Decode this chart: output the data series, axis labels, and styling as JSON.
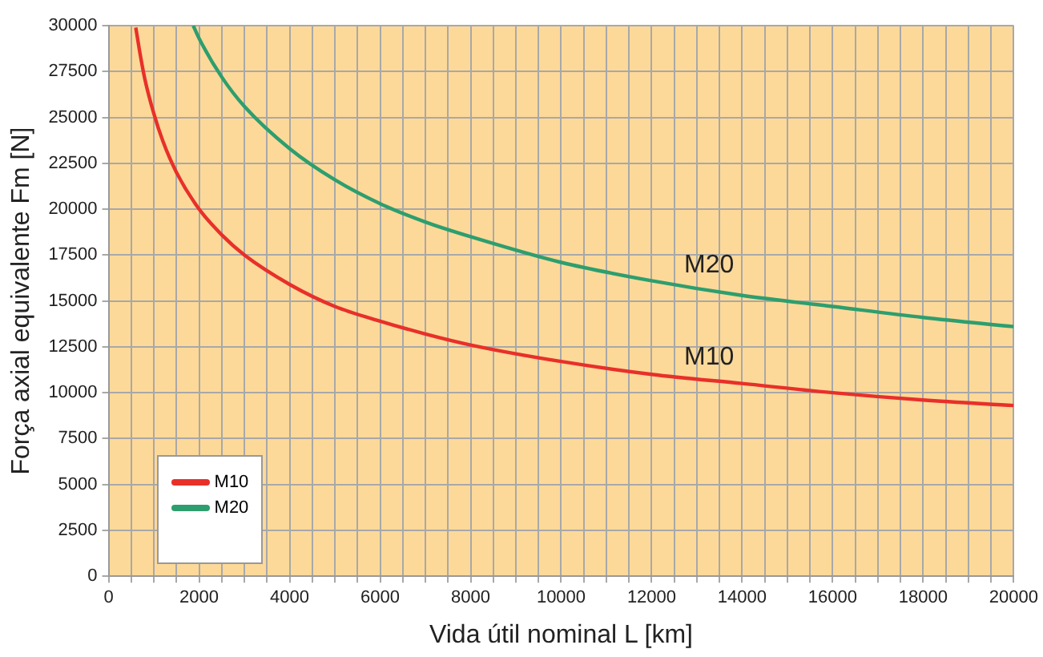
{
  "chart_data": {
    "type": "line",
    "xlabel": "Vida útil nominal L [km]",
    "ylabel": "Força axial equivalente Fm [N]",
    "xlim": [
      0,
      20000
    ],
    "xticks": [
      0,
      {
        "value": 500,
        "label": null
      },
      {
        "value": 1000,
        "label": null
      },
      {
        "value": 1500,
        "label": null
      },
      2000,
      {
        "value": 2500,
        "label": null
      },
      {
        "value": 3000,
        "label": null
      },
      {
        "value": 3500,
        "label": null
      },
      4000,
      {
        "value": 4500,
        "label": null
      },
      {
        "value": 5000,
        "label": null
      },
      {
        "value": 5500,
        "label": null
      },
      6000,
      {
        "value": 6500,
        "label": null
      },
      {
        "value": 7000,
        "label": null
      },
      {
        "value": 7500,
        "label": null
      },
      8000,
      {
        "value": 8500,
        "label": null
      },
      {
        "value": 9000,
        "label": null
      },
      {
        "value": 9500,
        "label": null
      },
      10000,
      {
        "value": 10500,
        "label": null
      },
      {
        "value": 11000,
        "label": null
      },
      {
        "value": 11500,
        "label": null
      },
      12000,
      {
        "value": 12500,
        "label": null
      },
      {
        "value": 13000,
        "label": null
      },
      {
        "value": 13500,
        "label": null
      },
      14000,
      {
        "value": 14500,
        "label": null
      },
      {
        "value": 15000,
        "label": null
      },
      {
        "value": 15500,
        "label": null
      },
      16000,
      {
        "value": 16500,
        "label": null
      },
      {
        "value": 17000,
        "label": null
      },
      {
        "value": 17500,
        "label": null
      },
      18000,
      {
        "value": 18500,
        "label": null
      },
      {
        "value": 19000,
        "label": null
      },
      {
        "value": 19500,
        "label": null
      },
      20000
    ],
    "ylim": [
      0,
      30000
    ],
    "yticks": [
      0,
      2500,
      5000,
      7500,
      10000,
      12500,
      15000,
      17500,
      20000,
      22500,
      25000,
      27500,
      30000
    ],
    "grid": true,
    "legend": "bottom left",
    "marker": "none",
    "line_style": "solid",
    "series": [
      {
        "name": "M10",
        "color": "#e8302a",
        "x": [
          600,
          700,
          800,
          1000,
          1200,
          1500,
          2000,
          2500,
          3000,
          4000,
          5000,
          6000,
          7000,
          8000,
          10000,
          12000,
          14000,
          16000,
          18000,
          20000
        ],
        "values": [
          29900,
          28400,
          27100,
          25200,
          23700,
          22000,
          20000,
          18600,
          17500,
          15900,
          14700,
          13900,
          13200,
          12600,
          11700,
          11000,
          10500,
          10000,
          9600,
          9300
        ]
      },
      {
        "name": "M20",
        "color": "#2e9e6e",
        "x": [
          1870,
          2000,
          2500,
          3000,
          4000,
          5000,
          6000,
          7000,
          8000,
          10000,
          12000,
          14000,
          16000,
          18000,
          20000
        ],
        "values": [
          30000,
          29300,
          27200,
          25600,
          23300,
          21600,
          20300,
          19300,
          18500,
          17100,
          16100,
          15300,
          14700,
          14100,
          13600
        ]
      }
    ],
    "annotations": [
      {
        "text": "M20",
        "x": 13000,
        "y": 15700
      },
      {
        "text": "M10",
        "x": 13000,
        "y": 10700
      }
    ]
  }
}
